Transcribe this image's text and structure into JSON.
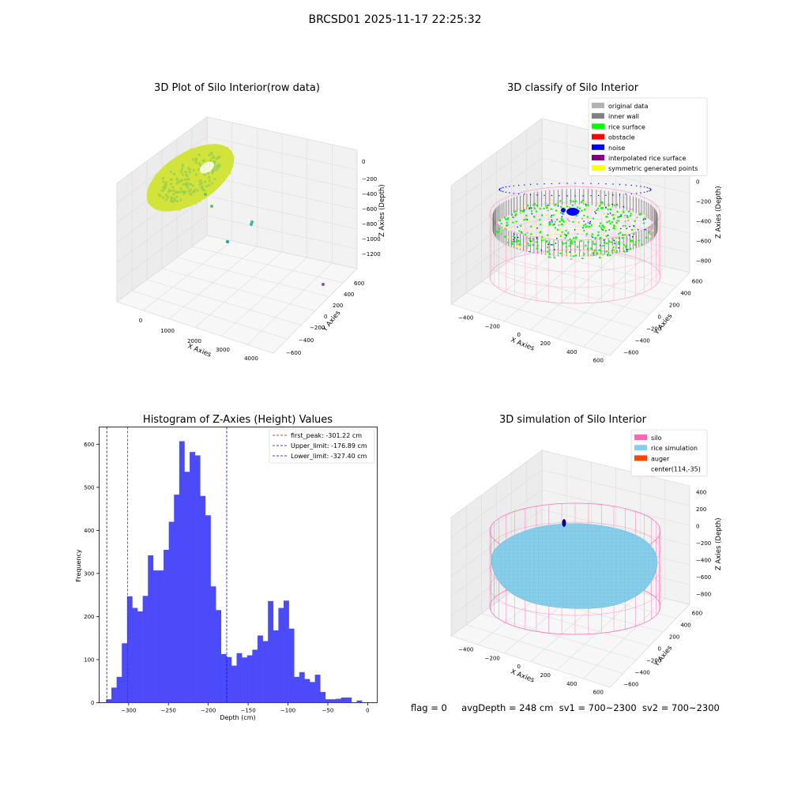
{
  "figure_title": "BRCSD01 2025-11-17 22:25:32",
  "status": {
    "flag": "flag = 0",
    "avg_depth": "avgDepth = 248 cm",
    "sv1": "sv1 = 700~2300",
    "sv2": "sv2 = 700~2300"
  },
  "colors": {
    "hist_bar": "#4b4bfa",
    "peak_line": "#e00000",
    "limit_line": "#0000cc",
    "grey_pane": "#f2f2f2",
    "pink_wire": "#ff69b4"
  },
  "chart_data": [
    {
      "id": "raw",
      "type": "scatter",
      "projection": "3d",
      "title": "3D Plot of Silo Interior(row data)",
      "xlabel": "X Axies",
      "ylabel": "Y Axies",
      "zlabel": "Z Axies (Depth)",
      "xticks": [
        "0",
        "1000",
        "2000",
        "3000",
        "4000"
      ],
      "yticks": [
        "600",
        "400",
        "200",
        "0",
        "−200",
        "−400",
        "−600"
      ],
      "zticks": [
        "0",
        "−200",
        "−400",
        "−600",
        "−800",
        "−1000",
        "−1200"
      ],
      "grid": true,
      "outliers": [
        {
          "x": 1500,
          "y": 400,
          "z": -300,
          "color": "#5ac864"
        },
        {
          "x": 1600,
          "y": 300,
          "z": -500,
          "color": "#5ac864"
        },
        {
          "x": 2400,
          "y": 250,
          "z": -900,
          "color": "#3cb8a0"
        },
        {
          "x": 2400,
          "y": 200,
          "z": -920,
          "color": "#3cb8a0"
        },
        {
          "x": 2200,
          "y": 50,
          "z": -1150,
          "color": "#25a08a"
        },
        {
          "x": 4200,
          "y": -300,
          "z": -1100,
          "color": "#8c4f9e"
        }
      ],
      "cluster": {
        "x_center": 800,
        "radius": 700,
        "z": -250,
        "color_inner": "#9bd24c",
        "color_outer": "#d2e33b"
      }
    },
    {
      "id": "classify",
      "type": "scatter",
      "projection": "3d",
      "title": "3D classify of Silo Interior",
      "xlabel": "X Axies",
      "ylabel": "Y Axies",
      "zlabel": "Z Axies (Depth)",
      "xticks": [
        "−400",
        "−200",
        "0",
        "200",
        "400",
        "600"
      ],
      "yticks": [
        "600",
        "400",
        "200",
        "0",
        "−200",
        "−400",
        "−600"
      ],
      "zticks": [
        "200",
        "0",
        "−200",
        "−400",
        "−600",
        "−800"
      ],
      "grid": true,
      "legend_position": "top-right",
      "legend": [
        {
          "label": "original data",
          "color": "#b3b3b3"
        },
        {
          "label": "inner wall",
          "color": "#808080"
        },
        {
          "label": "rice surface",
          "color": "#00ff00"
        },
        {
          "label": "obstacle",
          "color": "#ff0000"
        },
        {
          "label": "noise",
          "color": "#0000ff"
        },
        {
          "label": "interpolated rice surface",
          "color": "#800080"
        },
        {
          "label": "symmetric generated points",
          "color": "#ffff00"
        }
      ]
    },
    {
      "id": "hist",
      "type": "bar",
      "title": "Histogram of Z-Axies (Height) Values",
      "xlabel": "Depth (cm)",
      "ylabel": "Frequency",
      "xlim": [
        -337,
        12
      ],
      "ylim": [
        0,
        640
      ],
      "xticks": [
        {
          "v": -300,
          "label": "−300"
        },
        {
          "v": -250,
          "label": "−250"
        },
        {
          "v": -200,
          "label": "−200"
        },
        {
          "v": -150,
          "label": "−150"
        },
        {
          "v": -100,
          "label": "−100"
        },
        {
          "v": -50,
          "label": "−50"
        },
        {
          "v": 0,
          "label": "0"
        }
      ],
      "yticks": [
        {
          "v": 0,
          "label": "0"
        },
        {
          "v": 100,
          "label": "100"
        },
        {
          "v": 200,
          "label": "200"
        },
        {
          "v": 300,
          "label": "300"
        },
        {
          "v": 400,
          "label": "400"
        },
        {
          "v": 500,
          "label": "500"
        },
        {
          "v": 600,
          "label": "600"
        }
      ],
      "bin_start": -328.2,
      "bin_width": 6.55,
      "values": [
        8,
        35,
        60,
        138,
        247,
        220,
        212,
        248,
        342,
        307,
        307,
        355,
        420,
        483,
        607,
        536,
        582,
        574,
        480,
        435,
        270,
        215,
        113,
        106,
        86,
        115,
        105,
        110,
        123,
        156,
        143,
        236,
        168,
        220,
        237,
        172,
        60,
        71,
        55,
        48,
        65,
        25,
        8,
        8,
        9,
        12,
        12,
        0,
        5
      ],
      "vlines": [
        {
          "x": -301.22,
          "label": "first_peak: -301.22 cm",
          "color": "#e00000"
        },
        {
          "x": -176.89,
          "label": "Upper_limit: -176.89 cm",
          "color": "#0000cc"
        },
        {
          "x": -327.4,
          "label": "Lower_limit: -327.40 cm",
          "color": "#0000cc"
        }
      ],
      "legend_position": "top-right"
    },
    {
      "id": "sim",
      "type": "surface",
      "projection": "3d",
      "title": "3D simulation of Silo Interior",
      "xlabel": "X Axies",
      "ylabel": "Y Axies",
      "zlabel": "Z Axies (Depth)",
      "xticks": [
        "−400",
        "−200",
        "0",
        "200",
        "400",
        "600"
      ],
      "yticks": [
        "600",
        "400",
        "200",
        "0",
        "−200",
        "−400",
        "−600"
      ],
      "zticks": [
        "400",
        "200",
        "0",
        "−200",
        "−400",
        "−600",
        "−800"
      ],
      "grid": true,
      "legend_position": "top-right",
      "legend": [
        {
          "label": "silo",
          "color": "#ff69b4"
        },
        {
          "label": "rice simulation",
          "color": "#87ceeb"
        },
        {
          "label": "auger",
          "color": "#ff4500"
        },
        {
          "label": "center(114,-35)",
          "color": null
        }
      ]
    }
  ]
}
